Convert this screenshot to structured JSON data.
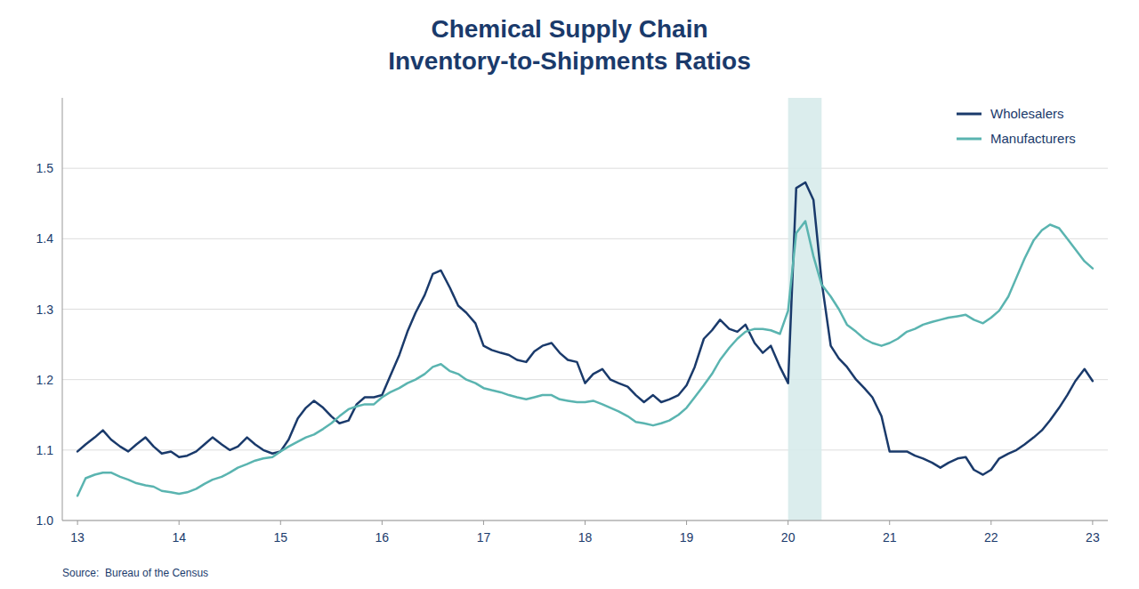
{
  "chart_data": {
    "type": "line",
    "title": "Chemical Supply Chain",
    "subtitle": "Inventory-to-Shipments Ratios",
    "annotations": [
      "Source:  Bureau of the Census"
    ],
    "xlim": [
      12.85,
      23.15
    ],
    "ylim": [
      1.0,
      1.6
    ],
    "xticks": [
      13,
      14,
      15,
      16,
      17,
      18,
      19,
      20,
      21,
      22,
      23
    ],
    "yticks": [
      {
        "value": 1.0,
        "label": "1.0"
      },
      1.1,
      1.2,
      1.3,
      1.4,
      1.5
    ],
    "grid": true,
    "legend": "upper-right",
    "bands": [
      {
        "from": 20.0,
        "to": 20.33,
        "color": "#d5eaea"
      }
    ],
    "x": [
      13.0,
      13.08,
      13.17,
      13.25,
      13.33,
      13.42,
      13.5,
      13.58,
      13.67,
      13.75,
      13.83,
      13.92,
      14.0,
      14.08,
      14.17,
      14.25,
      14.33,
      14.42,
      14.5,
      14.58,
      14.67,
      14.75,
      14.83,
      14.92,
      15.0,
      15.08,
      15.17,
      15.25,
      15.33,
      15.42,
      15.5,
      15.58,
      15.67,
      15.75,
      15.83,
      15.92,
      16.0,
      16.08,
      16.17,
      16.25,
      16.33,
      16.42,
      16.5,
      16.58,
      16.67,
      16.75,
      16.83,
      16.92,
      17.0,
      17.08,
      17.17,
      17.25,
      17.33,
      17.42,
      17.5,
      17.58,
      17.67,
      17.75,
      17.83,
      17.92,
      18.0,
      18.08,
      18.17,
      18.25,
      18.33,
      18.42,
      18.5,
      18.58,
      18.67,
      18.75,
      18.83,
      18.92,
      19.0,
      19.08,
      19.17,
      19.25,
      19.33,
      19.42,
      19.5,
      19.58,
      19.67,
      19.75,
      19.83,
      19.92,
      20.0,
      20.08,
      20.17,
      20.25,
      20.33,
      20.42,
      20.5,
      20.58,
      20.67,
      20.75,
      20.83,
      20.92,
      21.0,
      21.08,
      21.17,
      21.25,
      21.33,
      21.42,
      21.5,
      21.58,
      21.67,
      21.75,
      21.83,
      21.92,
      22.0,
      22.08,
      22.17,
      22.25,
      22.33,
      22.42,
      22.5,
      22.58,
      22.67,
      22.75,
      22.83,
      22.92,
      23.0
    ],
    "series": [
      {
        "name": "Wholesalers",
        "color": "#1a3a6b",
        "values": [
          1.098,
          1.108,
          1.118,
          1.128,
          1.115,
          1.105,
          1.098,
          1.108,
          1.118,
          1.105,
          1.095,
          1.098,
          1.09,
          1.092,
          1.098,
          1.108,
          1.118,
          1.108,
          1.1,
          1.105,
          1.118,
          1.108,
          1.1,
          1.095,
          1.098,
          1.115,
          1.145,
          1.16,
          1.17,
          1.16,
          1.148,
          1.138,
          1.142,
          1.165,
          1.175,
          1.175,
          1.178,
          1.205,
          1.235,
          1.268,
          1.295,
          1.32,
          1.35,
          1.355,
          1.33,
          1.305,
          1.295,
          1.28,
          1.248,
          1.242,
          1.238,
          1.235,
          1.228,
          1.225,
          1.24,
          1.248,
          1.252,
          1.238,
          1.228,
          1.225,
          1.195,
          1.208,
          1.215,
          1.2,
          1.195,
          1.19,
          1.178,
          1.168,
          1.178,
          1.168,
          1.172,
          1.178,
          1.192,
          1.218,
          1.258,
          1.27,
          1.285,
          1.272,
          1.268,
          1.278,
          1.252,
          1.238,
          1.248,
          1.218,
          1.195,
          1.472,
          1.48,
          1.455,
          1.34,
          1.248,
          1.23,
          1.218,
          1.2,
          1.188,
          1.175,
          1.148,
          1.098,
          1.098,
          1.098,
          1.092,
          1.088,
          1.082,
          1.075,
          1.082,
          1.088,
          1.09,
          1.072,
          1.065,
          1.072,
          1.088,
          1.095,
          1.1,
          1.108,
          1.118,
          1.128,
          1.142,
          1.16,
          1.178,
          1.198,
          1.215,
          1.198
        ]
      },
      {
        "name": "Manufacturers",
        "color": "#5ab4b0",
        "values": [
          1.035,
          1.06,
          1.065,
          1.068,
          1.068,
          1.062,
          1.058,
          1.053,
          1.05,
          1.048,
          1.042,
          1.04,
          1.038,
          1.04,
          1.045,
          1.052,
          1.058,
          1.062,
          1.068,
          1.075,
          1.08,
          1.085,
          1.088,
          1.09,
          1.098,
          1.105,
          1.112,
          1.118,
          1.122,
          1.13,
          1.138,
          1.148,
          1.158,
          1.162,
          1.165,
          1.165,
          1.175,
          1.182,
          1.188,
          1.195,
          1.2,
          1.208,
          1.218,
          1.222,
          1.212,
          1.208,
          1.2,
          1.195,
          1.188,
          1.185,
          1.182,
          1.178,
          1.175,
          1.172,
          1.175,
          1.178,
          1.178,
          1.172,
          1.17,
          1.168,
          1.168,
          1.17,
          1.165,
          1.16,
          1.155,
          1.148,
          1.14,
          1.138,
          1.135,
          1.138,
          1.142,
          1.15,
          1.16,
          1.175,
          1.192,
          1.208,
          1.228,
          1.245,
          1.258,
          1.268,
          1.272,
          1.272,
          1.27,
          1.265,
          1.298,
          1.408,
          1.425,
          1.375,
          1.335,
          1.318,
          1.3,
          1.278,
          1.268,
          1.258,
          1.252,
          1.248,
          1.252,
          1.258,
          1.268,
          1.272,
          1.278,
          1.282,
          1.285,
          1.288,
          1.29,
          1.292,
          1.285,
          1.28,
          1.288,
          1.298,
          1.318,
          1.345,
          1.372,
          1.398,
          1.412,
          1.42,
          1.415,
          1.4,
          1.385,
          1.368,
          1.358
        ]
      }
    ]
  }
}
